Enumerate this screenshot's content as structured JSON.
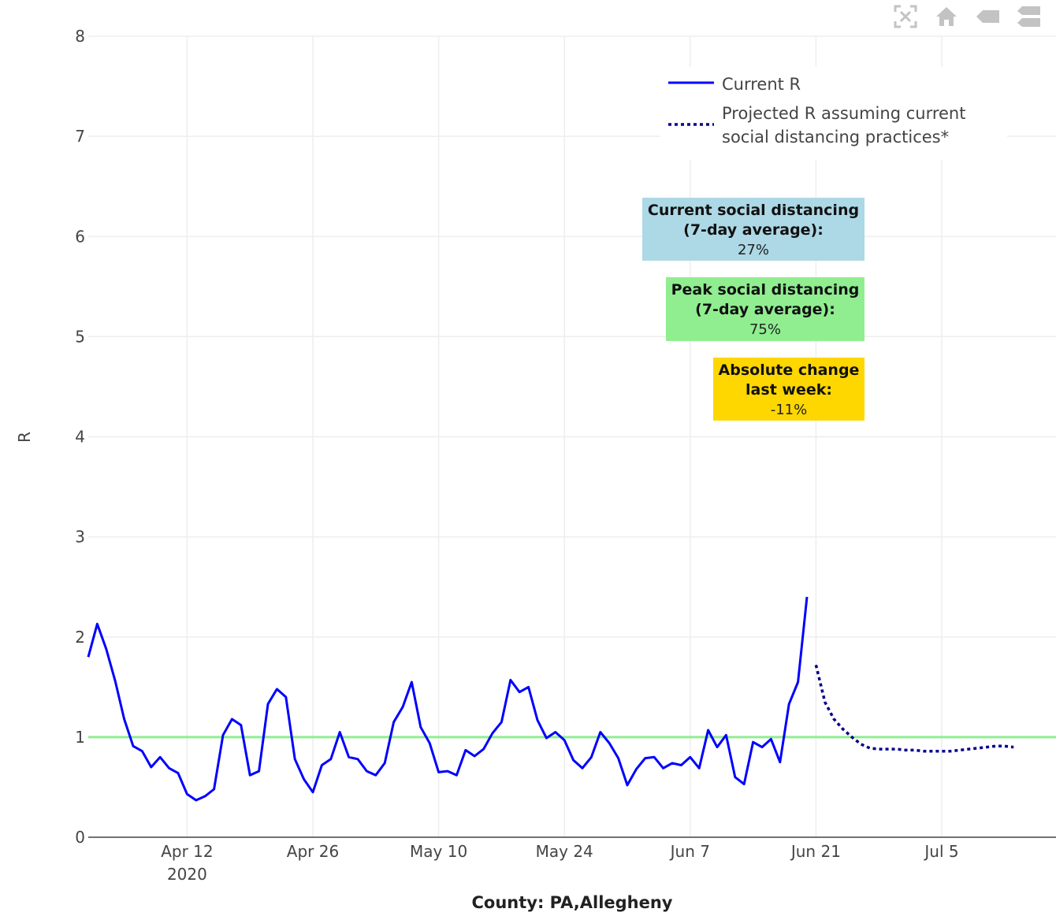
{
  "modebar": {
    "buttons": [
      {
        "icon": "autoscale-icon"
      },
      {
        "icon": "home-icon"
      },
      {
        "icon": "hover-closest-icon"
      },
      {
        "icon": "hover-compare-icon"
      }
    ]
  },
  "annotations": [
    {
      "lines": [
        "Current social distancing",
        "(7-day average):"
      ],
      "value": "27%",
      "color": "#add8e6"
    },
    {
      "lines": [
        "Peak social distancing",
        "(7-day average):"
      ],
      "value": "75%",
      "color": "#90ee90"
    },
    {
      "lines": [
        "Absolute change",
        "last week:"
      ],
      "value": "-11%",
      "color": "#ffd700"
    }
  ],
  "colors": {
    "current": "#0000ff",
    "projected": "#00008b",
    "threshold": "#90ee90",
    "grid": "#eeeeee"
  },
  "chart_data": {
    "type": "line",
    "title": "",
    "xlabel": "County: PA,Allegheny",
    "ylabel": "R",
    "ylim": [
      0,
      8
    ],
    "xlim": [
      "2020-04-01",
      "2020-07-13"
    ],
    "yticks": [
      0,
      1,
      2,
      3,
      4,
      5,
      6,
      7,
      8
    ],
    "xticks": [
      {
        "date": "2020-04-12",
        "label": "Apr 12",
        "sublabel": "2020"
      },
      {
        "date": "2020-04-26",
        "label": "Apr 26"
      },
      {
        "date": "2020-05-10",
        "label": "May 10"
      },
      {
        "date": "2020-05-24",
        "label": "May 24"
      },
      {
        "date": "2020-06-07",
        "label": "Jun 7"
      },
      {
        "date": "2020-06-21",
        "label": "Jun 21"
      },
      {
        "date": "2020-07-05",
        "label": "Jul 5"
      }
    ],
    "grid": true,
    "legend_position": "top-right",
    "threshold": 1,
    "series": [
      {
        "name": "Current R",
        "style": "solid",
        "x": [
          "2020-04-01",
          "2020-04-02",
          "2020-04-03",
          "2020-04-04",
          "2020-04-05",
          "2020-04-06",
          "2020-04-07",
          "2020-04-08",
          "2020-04-09",
          "2020-04-10",
          "2020-04-11",
          "2020-04-12",
          "2020-04-13",
          "2020-04-14",
          "2020-04-15",
          "2020-04-16",
          "2020-04-17",
          "2020-04-18",
          "2020-04-19",
          "2020-04-20",
          "2020-04-21",
          "2020-04-22",
          "2020-04-23",
          "2020-04-24",
          "2020-04-25",
          "2020-04-26",
          "2020-04-27",
          "2020-04-28",
          "2020-04-29",
          "2020-04-30",
          "2020-05-01",
          "2020-05-02",
          "2020-05-03",
          "2020-05-04",
          "2020-05-05",
          "2020-05-06",
          "2020-05-07",
          "2020-05-08",
          "2020-05-09",
          "2020-05-10",
          "2020-05-11",
          "2020-05-12",
          "2020-05-13",
          "2020-05-14",
          "2020-05-15",
          "2020-05-16",
          "2020-05-17",
          "2020-05-18",
          "2020-05-19",
          "2020-05-20",
          "2020-05-21",
          "2020-05-22",
          "2020-05-23",
          "2020-05-24",
          "2020-05-25",
          "2020-05-26",
          "2020-05-27",
          "2020-05-28",
          "2020-05-29",
          "2020-05-30",
          "2020-05-31",
          "2020-06-01",
          "2020-06-02",
          "2020-06-03",
          "2020-06-04",
          "2020-06-05",
          "2020-06-06",
          "2020-06-07",
          "2020-06-08",
          "2020-06-09",
          "2020-06-10",
          "2020-06-11",
          "2020-06-12",
          "2020-06-13",
          "2020-06-14",
          "2020-06-15",
          "2020-06-16",
          "2020-06-17",
          "2020-06-18",
          "2020-06-19",
          "2020-06-20"
        ],
        "values": [
          1.8,
          2.13,
          1.88,
          1.56,
          1.18,
          0.91,
          0.86,
          0.7,
          0.8,
          0.69,
          0.64,
          0.43,
          0.37,
          0.41,
          0.48,
          1.02,
          1.18,
          1.12,
          0.62,
          0.66,
          1.33,
          1.48,
          1.4,
          0.78,
          0.58,
          0.45,
          0.72,
          0.78,
          1.05,
          0.8,
          0.78,
          0.66,
          0.62,
          0.74,
          1.15,
          1.3,
          1.55,
          1.1,
          0.94,
          0.65,
          0.66,
          0.62,
          0.87,
          0.81,
          0.88,
          1.04,
          1.15,
          1.57,
          1.45,
          1.5,
          1.17,
          0.99,
          1.05,
          0.97,
          0.77,
          0.69,
          0.8,
          1.05,
          0.94,
          0.79,
          0.52,
          0.68,
          0.79,
          0.8,
          0.69,
          0.74,
          0.72,
          0.8,
          0.69,
          1.07,
          0.9,
          1.02,
          0.6,
          0.53,
          0.95,
          0.9,
          0.98,
          0.75,
          1.33,
          1.55,
          2.4
        ]
      },
      {
        "name": "Projected R assuming current social distancing practices*",
        "style": "dotted",
        "x": [
          "2020-06-21",
          "2020-06-22",
          "2020-06-23",
          "2020-06-24",
          "2020-06-25",
          "2020-06-26",
          "2020-06-27",
          "2020-06-28",
          "2020-06-29",
          "2020-06-30",
          "2020-07-01",
          "2020-07-02",
          "2020-07-03",
          "2020-07-04",
          "2020-07-05",
          "2020-07-06",
          "2020-07-07",
          "2020-07-08",
          "2020-07-09",
          "2020-07-10",
          "2020-07-11",
          "2020-07-12",
          "2020-07-13"
        ],
        "values": [
          1.72,
          1.35,
          1.18,
          1.08,
          1.0,
          0.93,
          0.89,
          0.88,
          0.88,
          0.88,
          0.87,
          0.87,
          0.86,
          0.86,
          0.86,
          0.86,
          0.87,
          0.88,
          0.89,
          0.9,
          0.91,
          0.91,
          0.9
        ]
      }
    ]
  }
}
